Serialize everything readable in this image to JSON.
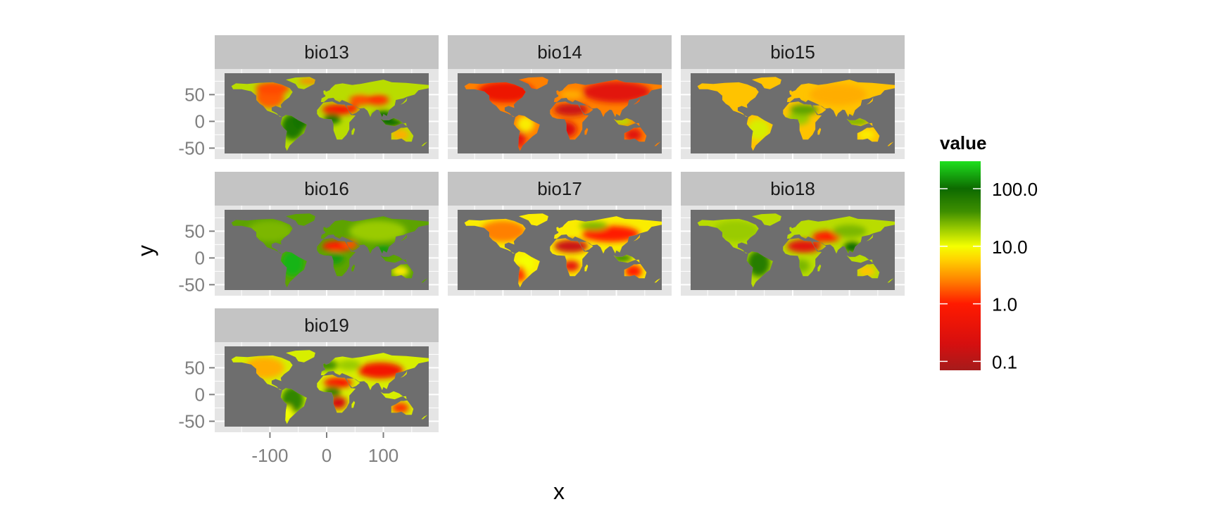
{
  "chart_data": {
    "type": "heatmap",
    "subtype": "faceted raster maps",
    "facets": [
      "bio13",
      "bio14",
      "bio15",
      "bio16",
      "bio17",
      "bio18",
      "bio19"
    ],
    "layout": {
      "ncol": 3,
      "nrow": 3
    },
    "xlabel": "x",
    "ylabel": "y",
    "xlim": [
      -180,
      180
    ],
    "ylim": [
      -60,
      90
    ],
    "x_ticks": [
      -100,
      0,
      100
    ],
    "x_tick_labels": [
      "-100",
      "0",
      "100"
    ],
    "y_ticks": [
      50,
      0,
      -50
    ],
    "y_tick_labels": [
      "50",
      "0",
      "-50"
    ],
    "grid": true,
    "panel_background": "#e5e5e5",
    "raster_background": "#6e6e6e",
    "strip_background": "#c4c4c4",
    "legend": {
      "title": "value",
      "position": "right",
      "scale": "log10",
      "range": [
        0.07,
        300
      ],
      "breaks": [
        100,
        10,
        1,
        0.1
      ],
      "break_labels": [
        "100.0",
        "10.0",
        "1.0",
        "0.1"
      ],
      "colors": [
        {
          "value": 0.07,
          "color": "#a51b1b"
        },
        {
          "value": 0.2,
          "color": "#d60f0f"
        },
        {
          "value": 1,
          "color": "#ff1a00"
        },
        {
          "value": 2.5,
          "color": "#ff8000"
        },
        {
          "value": 6,
          "color": "#ffd400"
        },
        {
          "value": 10,
          "color": "#f5ff00"
        },
        {
          "value": 20,
          "color": "#9acb00"
        },
        {
          "value": 40,
          "color": "#3e8f00"
        },
        {
          "value": 100,
          "color": "#0d6a00"
        },
        {
          "value": 300,
          "color": "#1ee01e"
        }
      ]
    }
  }
}
